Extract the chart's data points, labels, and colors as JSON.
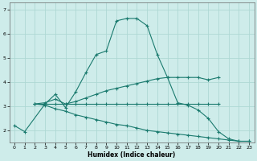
{
  "xlabel": "Humidex (Indice chaleur)",
  "background_color": "#ceecea",
  "grid_color": "#aed8d4",
  "line_color": "#1a7a6e",
  "xlim": [
    -0.5,
    23.5
  ],
  "ylim": [
    1.5,
    7.3
  ],
  "yticks": [
    2,
    3,
    4,
    5,
    6,
    7
  ],
  "xticks": [
    0,
    1,
    2,
    3,
    4,
    5,
    6,
    7,
    8,
    9,
    10,
    11,
    12,
    13,
    14,
    15,
    16,
    17,
    18,
    19,
    20,
    21,
    22,
    23
  ],
  "series": [
    {
      "x": [
        0,
        1,
        3,
        4,
        5,
        6,
        7,
        8,
        9,
        10,
        11,
        12,
        13,
        14,
        15,
        16,
        17,
        18,
        19,
        20,
        21,
        22,
        23
      ],
      "y": [
        2.2,
        1.95,
        3.1,
        3.5,
        2.95,
        3.6,
        4.4,
        5.15,
        5.3,
        6.55,
        6.65,
        6.65,
        6.35,
        5.15,
        4.2,
        3.15,
        3.05,
        2.85,
        2.5,
        1.95,
        1.65,
        1.55,
        1.55
      ]
    },
    {
      "x": [
        2,
        3,
        4,
        5,
        6,
        7,
        8,
        9,
        10,
        11,
        12,
        13,
        14,
        15,
        16,
        17,
        18,
        19,
        20
      ],
      "y": [
        3.1,
        3.15,
        3.3,
        3.1,
        3.2,
        3.35,
        3.5,
        3.65,
        3.75,
        3.85,
        3.95,
        4.05,
        4.15,
        4.2,
        4.2,
        4.2,
        4.2,
        4.1,
        4.2
      ]
    },
    {
      "x": [
        2,
        3,
        4,
        5,
        6,
        7,
        8,
        9,
        10,
        11,
        12,
        13,
        14,
        15,
        16,
        17,
        18,
        19,
        20
      ],
      "y": [
        3.1,
        3.1,
        3.1,
        3.1,
        3.1,
        3.1,
        3.1,
        3.1,
        3.1,
        3.1,
        3.1,
        3.1,
        3.1,
        3.1,
        3.1,
        3.1,
        3.1,
        3.1,
        3.1
      ]
    },
    {
      "x": [
        2,
        3,
        4,
        5,
        6,
        7,
        8,
        9,
        10,
        11,
        12,
        13,
        14,
        15,
        16,
        17,
        18,
        19,
        20,
        21,
        22,
        23
      ],
      "y": [
        3.1,
        3.05,
        2.9,
        2.8,
        2.65,
        2.55,
        2.45,
        2.35,
        2.25,
        2.2,
        2.1,
        2.0,
        1.95,
        1.9,
        1.85,
        1.8,
        1.75,
        1.7,
        1.65,
        1.6,
        1.55,
        1.55
      ]
    }
  ]
}
